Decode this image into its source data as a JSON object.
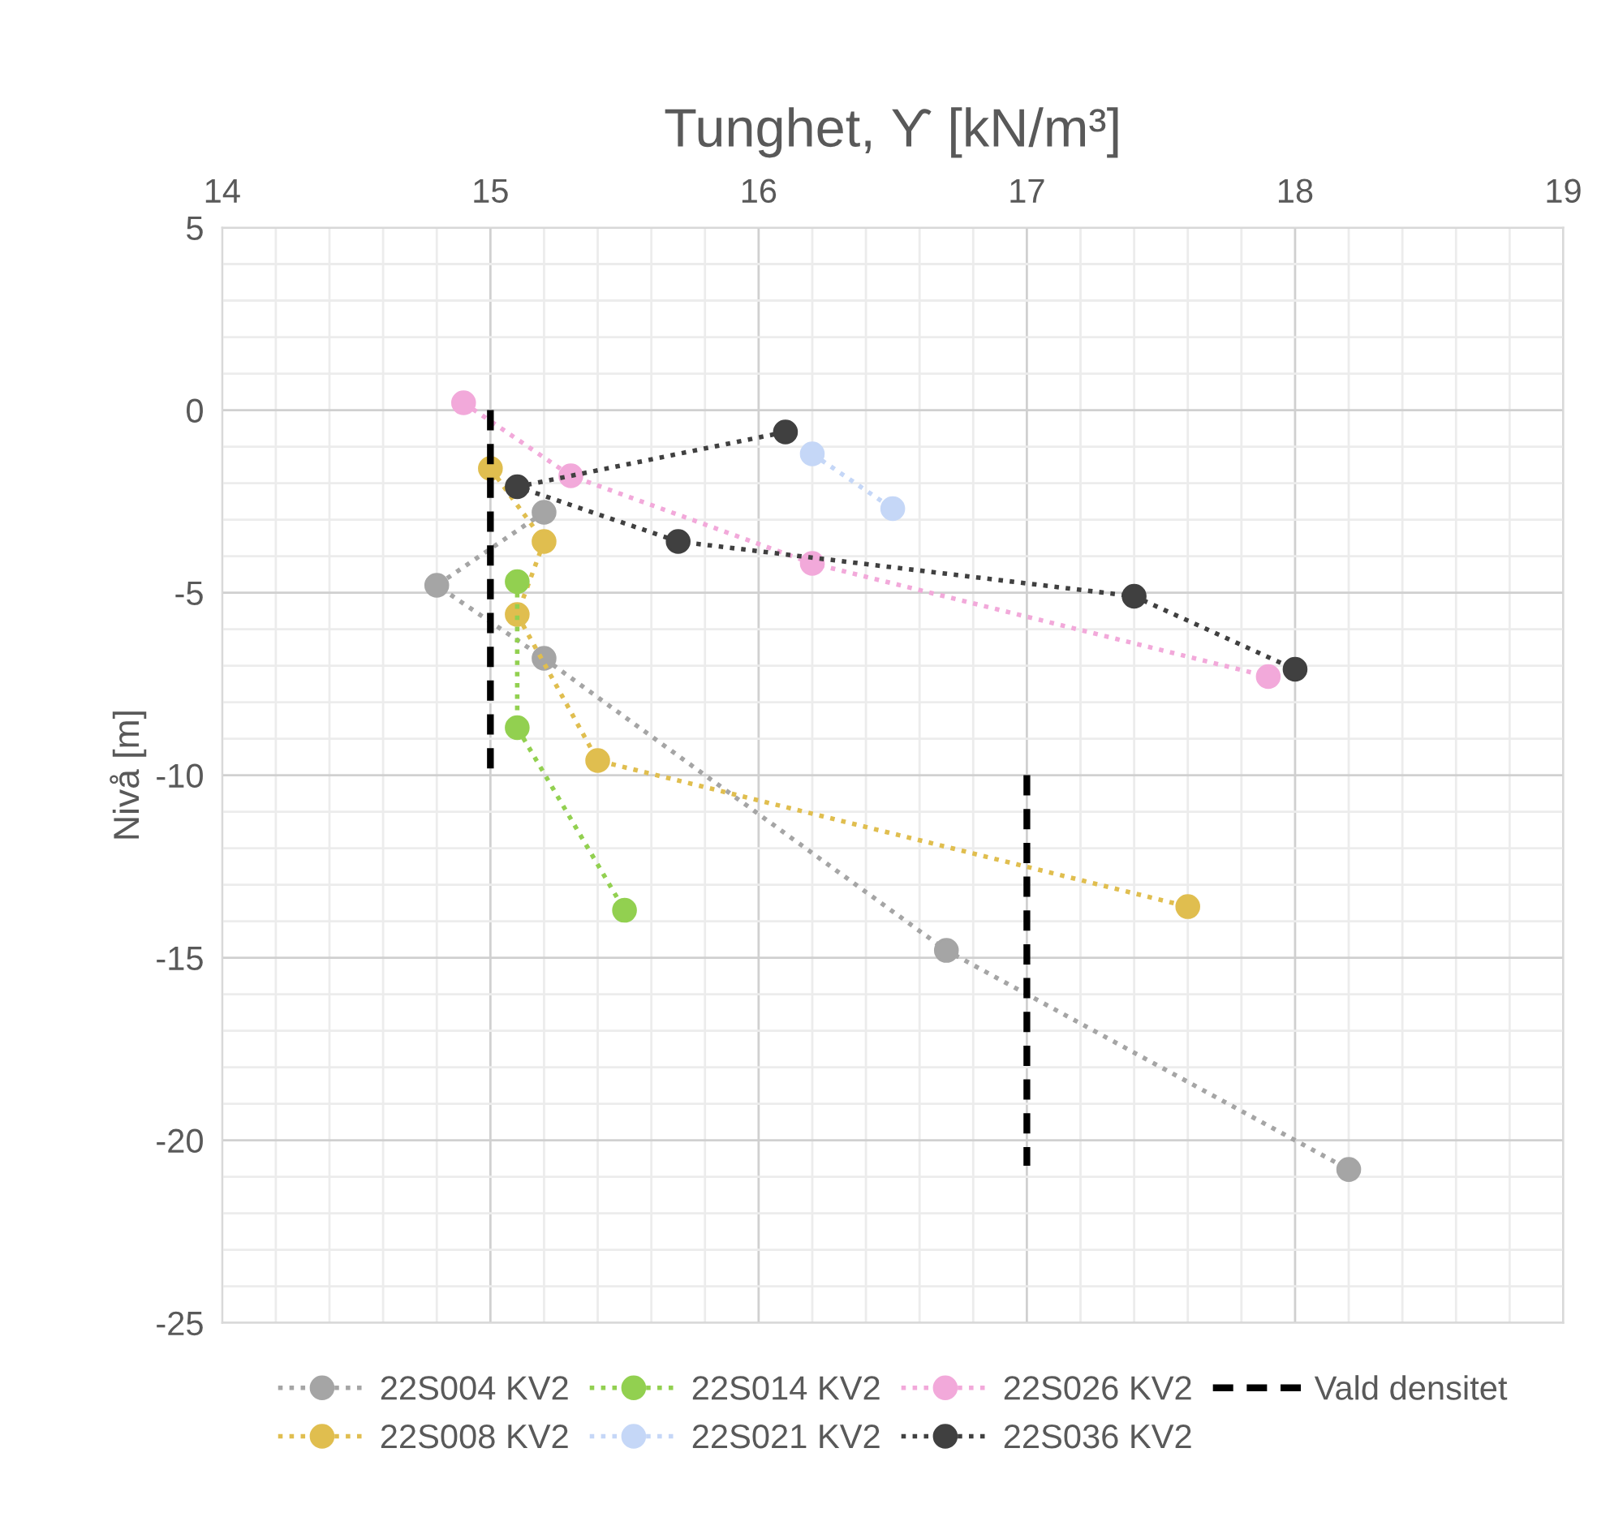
{
  "chart_data": {
    "type": "line",
    "xlabel": "Tunghet, ϒ [kN/m³]",
    "ylabel": "Nivå [m]",
    "xlim": [
      14,
      19
    ],
    "ylim": [
      -25,
      5
    ],
    "xticks": [
      14,
      {
        "value": 14.2,
        "label": null
      },
      {
        "value": 14.4,
        "label": null
      },
      {
        "value": 14.6,
        "label": null
      },
      {
        "value": 14.8,
        "label": null
      },
      15,
      {
        "value": 15.2,
        "label": null
      },
      {
        "value": 15.4,
        "label": null
      },
      {
        "value": 15.6,
        "label": null
      },
      {
        "value": 15.8,
        "label": null
      },
      16,
      {
        "value": 16.2,
        "label": null
      },
      {
        "value": 16.4,
        "label": null
      },
      {
        "value": 16.6,
        "label": null
      },
      {
        "value": 16.8,
        "label": null
      },
      17,
      {
        "value": 17.2,
        "label": null
      },
      {
        "value": 17.4,
        "label": null
      },
      {
        "value": 17.6,
        "label": null
      },
      {
        "value": 17.8,
        "label": null
      },
      18,
      {
        "value": 18.2,
        "label": null
      },
      {
        "value": 18.4,
        "label": null
      },
      {
        "value": 18.6,
        "label": null
      },
      {
        "value": 18.8,
        "label": null
      },
      19
    ],
    "yticks": [
      -25,
      {
        "value": -24,
        "label": null
      },
      {
        "value": -23,
        "label": null
      },
      {
        "value": -22,
        "label": null
      },
      {
        "value": -21,
        "label": null
      },
      -20,
      {
        "value": -19,
        "label": null
      },
      {
        "value": -18,
        "label": null
      },
      {
        "value": -17,
        "label": null
      },
      {
        "value": -16,
        "label": null
      },
      -15,
      {
        "value": -14,
        "label": null
      },
      {
        "value": -13,
        "label": null
      },
      {
        "value": -12,
        "label": null
      },
      {
        "value": -11,
        "label": null
      },
      -10,
      {
        "value": -9,
        "label": null
      },
      {
        "value": -8,
        "label": null
      },
      {
        "value": -7,
        "label": null
      },
      {
        "value": -6,
        "label": null
      },
      -5,
      {
        "value": -4,
        "label": null
      },
      {
        "value": -3,
        "label": null
      },
      {
        "value": -2,
        "label": null
      },
      {
        "value": -1,
        "label": null
      },
      0,
      {
        "value": 1,
        "label": null
      },
      {
        "value": 2,
        "label": null
      },
      {
        "value": 3,
        "label": null
      },
      {
        "value": 4,
        "label": null
      },
      5
    ],
    "grid": true,
    "legend": "bottom",
    "marker": "circle",
    "line_style": "dotted",
    "series": [
      {
        "name": "22S004 KV2",
        "color": "#a5a5a5",
        "x": [
          15.2,
          14.8,
          15.2,
          16.7,
          18.2
        ],
        "values": [
          -2.8,
          -4.8,
          -6.8,
          -14.8,
          -20.8
        ]
      },
      {
        "name": "22S008 KV2",
        "color": "#e0be4f",
        "x": [
          15.0,
          15.2,
          15.1,
          15.4,
          17.6
        ],
        "values": [
          -1.6,
          -3.6,
          -5.6,
          -9.6,
          -13.6
        ]
      },
      {
        "name": "22S014 KV2",
        "color": "#92d050",
        "x": [
          15.1,
          15.1,
          15.5
        ],
        "values": [
          -4.7,
          -8.7,
          -13.7
        ]
      },
      {
        "name": "22S021 KV2",
        "color": "#c5d7f7",
        "x": [
          16.2,
          16.5
        ],
        "values": [
          -1.2,
          -2.7
        ]
      },
      {
        "name": "22S026 KV2",
        "color": "#f2a9da",
        "x": [
          14.9,
          15.3,
          16.2,
          17.9
        ],
        "values": [
          0.2,
          -1.8,
          -4.2,
          -7.3
        ]
      },
      {
        "name": "22S036 KV2",
        "color": "#404040",
        "x": [
          16.1,
          15.1,
          15.7,
          17.4,
          18.0
        ],
        "values": [
          -0.6,
          -2.1,
          -3.6,
          -5.1,
          -7.1
        ]
      },
      {
        "name": "Vald densitet",
        "color": "#000000",
        "marker": "none",
        "line_style": "dashed",
        "x": [
          15,
          15,
          16,
          17,
          17
        ],
        "values": [
          0,
          -10,
          null,
          -10,
          -20.7
        ]
      }
    ]
  }
}
